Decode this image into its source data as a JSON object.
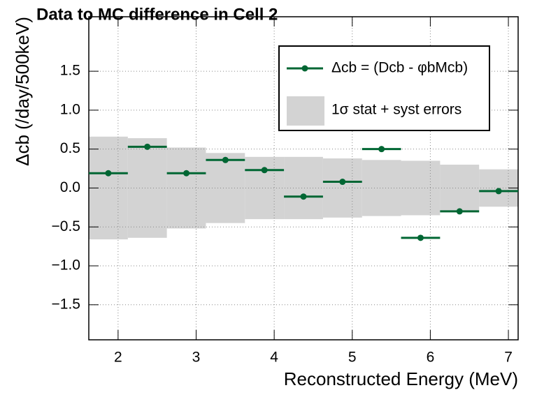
{
  "chart_data": {
    "type": "errorbar",
    "title": "Data to MC difference in Cell 2",
    "xlabel": "Reconstructed Energy (MeV)",
    "ylabel": "Δcb (/day/500keV)",
    "x": [
      1.875,
      2.375,
      2.875,
      3.375,
      3.875,
      4.375,
      4.875,
      5.375,
      5.875,
      6.375,
      6.875
    ],
    "xerr": 0.25,
    "series": [
      {
        "name": "Δcb = (Dcb - φbMcb)",
        "color": "#006633",
        "values": [
          0.19,
          0.53,
          0.19,
          0.36,
          0.23,
          -0.11,
          0.08,
          0.5,
          -0.64,
          -0.3,
          -0.04
        ]
      },
      {
        "name": "1σ stat + syst errors",
        "color": "#c8c8c8",
        "values": [
          0.66,
          0.64,
          0.52,
          0.45,
          0.4,
          0.4,
          0.38,
          0.36,
          0.35,
          0.3,
          0.24
        ]
      }
    ],
    "xlim": [
      1.625,
      7.125
    ],
    "ylim": [
      -1.95,
      2.2
    ],
    "xticks": [
      2,
      3,
      4,
      5,
      6,
      7
    ],
    "yticks": [
      {
        "value": -1.5,
        "label": "−1.5"
      },
      {
        "value": -1,
        "label": "−1.0"
      },
      {
        "value": -0.5,
        "label": "−0.5"
      },
      {
        "value": 0,
        "label": "0.0"
      },
      0.5,
      {
        "value": 1,
        "label": "1.0"
      },
      1.5
    ],
    "grid": true,
    "legend": "upper right"
  }
}
